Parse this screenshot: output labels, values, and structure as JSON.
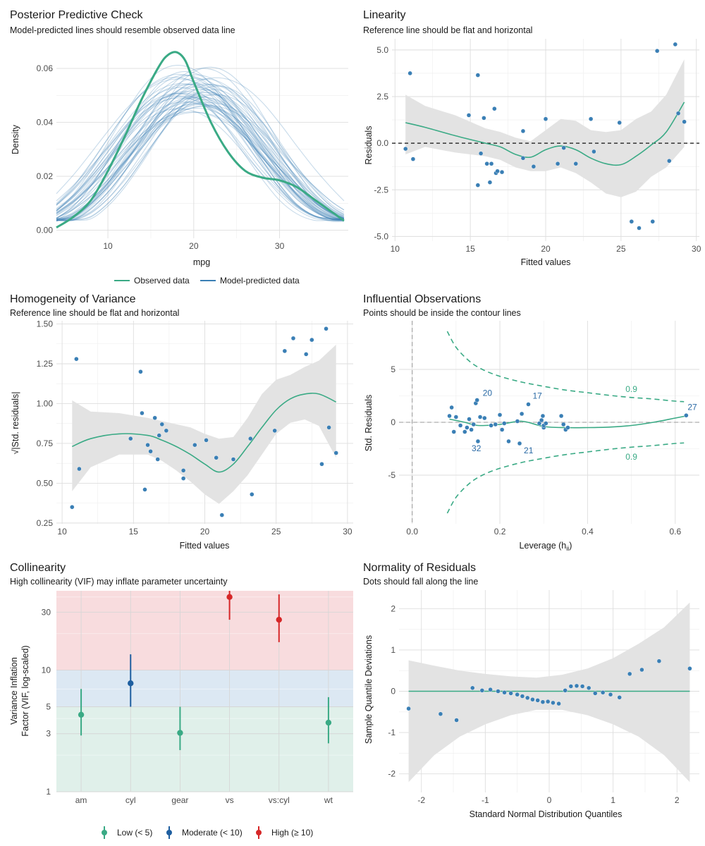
{
  "colors": {
    "green": "#3aaa85",
    "blue": "#3a7fb5",
    "red": "#d62728",
    "darkblue": "#1f5fa0",
    "ribbon": "#e3e3e3",
    "zone_low": "#e0f0ea",
    "zone_moderate": "#dce8f3",
    "zone_high": "#f8dcde"
  },
  "chart_data": [
    {
      "id": "ppc",
      "type": "line",
      "title": "Posterior Predictive Check",
      "subtitle": "Model-predicted lines should resemble observed data line",
      "xlabel": "mpg",
      "ylabel": "Density",
      "xlim": [
        4,
        38
      ],
      "ylim": [
        -0.003,
        0.071
      ],
      "xticks": [
        10,
        20,
        30
      ],
      "yticks": [
        0.0,
        0.02,
        0.04,
        0.06
      ],
      "ytick_labels": [
        "0.00",
        "0.02",
        "0.04",
        "0.06"
      ],
      "grid": true,
      "legend_position": "bottom",
      "legend": [
        "Observed data",
        "Model-predicted data"
      ],
      "series": [
        {
          "name": "Observed data",
          "x": [
            4,
            6,
            8,
            10,
            12,
            14,
            16,
            17,
            18,
            19,
            20,
            22,
            24,
            26,
            28,
            30,
            32,
            34,
            36,
            37.5
          ],
          "y": [
            0.001,
            0.005,
            0.011,
            0.022,
            0.035,
            0.049,
            0.061,
            0.065,
            0.066,
            0.063,
            0.055,
            0.04,
            0.029,
            0.022,
            0.0195,
            0.0185,
            0.016,
            0.0115,
            0.007,
            0.0035
          ]
        },
        {
          "name": "Model-predicted data",
          "draws": 50,
          "x": [
            4,
            6,
            8,
            10,
            12,
            14,
            16,
            18,
            20,
            22,
            24,
            26,
            28,
            30,
            32,
            34,
            36,
            37.5
          ],
          "y": [
            0.004,
            0.008,
            0.014,
            0.022,
            0.031,
            0.04,
            0.048,
            0.053,
            0.055,
            0.054,
            0.05,
            0.043,
            0.034,
            0.025,
            0.017,
            0.01,
            0.006,
            0.004
          ]
        }
      ]
    },
    {
      "id": "linearity",
      "type": "scatter",
      "title": "Linearity",
      "subtitle": "Reference line should be flat and horizontal",
      "xlabel": "Fitted values",
      "ylabel": "Residuals",
      "xlim": [
        9.8,
        30.2
      ],
      "ylim": [
        -5.25,
        5.6
      ],
      "xticks": [
        10,
        15,
        20,
        25,
        30
      ],
      "yticks": [
        -5.0,
        -2.5,
        0.0,
        2.5,
        5.0
      ],
      "ytick_labels": [
        "-5.0",
        "-2.5",
        "0.0",
        "2.5",
        "5.0"
      ],
      "grid": true,
      "reference_line": 0,
      "points": {
        "x": [
          10.7,
          11.0,
          11.2,
          14.9,
          15.5,
          15.5,
          15.7,
          15.9,
          16.1,
          16.3,
          16.4,
          16.6,
          16.7,
          16.8,
          17.1,
          18.5,
          18.5,
          19.2,
          20.0,
          20.8,
          21.2,
          22.0,
          23.0,
          23.2,
          24.9,
          25.7,
          26.2,
          27.1,
          27.4,
          28.2,
          28.6,
          28.8,
          29.2
        ],
        "y": [
          -0.3,
          3.75,
          -0.85,
          1.5,
          3.65,
          -2.25,
          -0.55,
          1.35,
          -1.1,
          -2.1,
          -1.1,
          1.85,
          -1.6,
          -1.5,
          -1.55,
          0.65,
          -0.8,
          -1.25,
          1.3,
          -1.1,
          -0.25,
          -1.1,
          1.3,
          -0.45,
          1.1,
          -4.2,
          -4.55,
          -4.2,
          4.95,
          -0.95,
          5.3,
          1.6,
          1.15
        ]
      },
      "smooth": {
        "x": [
          10.7,
          12,
          14,
          16,
          17,
          18,
          19,
          20,
          21,
          22,
          23,
          24,
          25,
          26,
          27,
          28,
          29.2
        ],
        "y": [
          1.1,
          0.85,
          0.4,
          0.0,
          -0.2,
          -0.6,
          -0.75,
          -0.35,
          -0.15,
          -0.35,
          -0.8,
          -1.1,
          -1.15,
          -0.7,
          -0.1,
          0.6,
          2.2
        ],
        "lower": [
          -0.6,
          -0.2,
          -0.5,
          -0.7,
          -0.9,
          -1.3,
          -1.5,
          -1.5,
          -1.3,
          -1.6,
          -2.1,
          -2.7,
          -2.9,
          -2.6,
          -1.8,
          -1.3,
          -0.2
        ],
        "upper": [
          2.6,
          2.0,
          1.5,
          0.8,
          0.6,
          0.3,
          0.1,
          0.7,
          1.3,
          1.2,
          0.7,
          0.6,
          0.7,
          1.3,
          1.7,
          2.6,
          4.5
        ]
      }
    },
    {
      "id": "homogeneity",
      "type": "scatter",
      "title": "Homogeneity of Variance",
      "subtitle": "Reference line should be flat and horizontal",
      "xlabel": "Fitted values",
      "ylabel": "√|Std. residuals|",
      "xlim": [
        9.6,
        30.4
      ],
      "ylim": [
        0.245,
        1.52
      ],
      "xticks": [
        10,
        15,
        20,
        25,
        30
      ],
      "yticks": [
        0.25,
        0.5,
        0.75,
        1.0,
        1.25,
        1.5
      ],
      "ytick_labels": [
        "0.25",
        "0.50",
        "0.75",
        "1.00",
        "1.25",
        "1.50"
      ],
      "grid": true,
      "points": {
        "x": [
          10.7,
          11.0,
          11.2,
          14.8,
          15.5,
          15.6,
          15.8,
          16.0,
          16.2,
          16.5,
          16.7,
          16.8,
          17.0,
          17.3,
          18.5,
          18.5,
          19.3,
          20.1,
          20.8,
          21.2,
          22.0,
          23.2,
          23.3,
          24.9,
          25.6,
          26.2,
          27.1,
          27.5,
          28.2,
          28.5,
          28.7,
          29.2
        ],
        "y": [
          0.35,
          1.28,
          0.59,
          0.78,
          1.2,
          0.94,
          0.46,
          0.74,
          0.7,
          0.91,
          0.65,
          0.8,
          0.87,
          0.83,
          0.58,
          0.53,
          0.74,
          0.77,
          0.66,
          0.3,
          0.65,
          0.78,
          0.43,
          0.83,
          1.33,
          1.41,
          1.31,
          1.4,
          0.62,
          1.47,
          0.85,
          0.69
        ]
      },
      "smooth": {
        "x": [
          10.7,
          12,
          14,
          16,
          17,
          18,
          19,
          20,
          21,
          22,
          23,
          24,
          25,
          26,
          27,
          28,
          29.2
        ],
        "y": [
          0.73,
          0.78,
          0.81,
          0.8,
          0.77,
          0.73,
          0.68,
          0.62,
          0.57,
          0.62,
          0.73,
          0.85,
          0.96,
          1.03,
          1.06,
          1.06,
          1.01
        ],
        "lower": [
          0.45,
          0.6,
          0.68,
          0.68,
          0.64,
          0.58,
          0.51,
          0.43,
          0.37,
          0.45,
          0.55,
          0.68,
          0.81,
          0.88,
          0.9,
          0.86,
          0.66
        ],
        "upper": [
          1.02,
          0.95,
          0.94,
          0.91,
          0.89,
          0.87,
          0.85,
          0.81,
          0.78,
          0.79,
          0.91,
          1.06,
          1.15,
          1.18,
          1.23,
          1.27,
          1.37
        ]
      }
    },
    {
      "id": "influential",
      "type": "scatter",
      "title": "Influential Observations",
      "subtitle": "Points should be inside the contour lines",
      "xlabel": "Leverage (h",
      "xlabel_sub": "ii",
      "xlabel_close": ")",
      "ylabel": "Std. Residuals",
      "xlim": [
        -0.03,
        0.655
      ],
      "ylim": [
        -9.6,
        9.6
      ],
      "xticks": [
        0.0,
        0.2,
        0.4,
        0.6
      ],
      "xtick_labels": [
        "0.0",
        "0.2",
        "0.4",
        "0.6"
      ],
      "yticks": [
        -5,
        0,
        5
      ],
      "ytick_labels": [
        "-5",
        "0",
        "5"
      ],
      "grid": true,
      "points": {
        "x": [
          0.085,
          0.09,
          0.095,
          0.1,
          0.11,
          0.12,
          0.125,
          0.13,
          0.135,
          0.14,
          0.145,
          0.148,
          0.15,
          0.155,
          0.165,
          0.18,
          0.19,
          0.2,
          0.205,
          0.21,
          0.22,
          0.24,
          0.245,
          0.25,
          0.265,
          0.29,
          0.295,
          0.298,
          0.3,
          0.3,
          0.305,
          0.34,
          0.345,
          0.35,
          0.355,
          0.625
        ],
        "y": [
          0.6,
          1.4,
          -0.9,
          0.5,
          -0.3,
          -0.9,
          -0.5,
          0.3,
          -0.7,
          -0.2,
          1.8,
          2.1,
          -1.8,
          0.5,
          0.4,
          -0.3,
          -0.2,
          0.7,
          -0.7,
          -0.1,
          -1.8,
          0.1,
          -2.0,
          0.8,
          1.7,
          -0.1,
          0.2,
          0.6,
          -0.5,
          -0.3,
          -0.1,
          0.6,
          -0.2,
          -0.7,
          -0.5,
          0.65
        ]
      },
      "labels": [
        {
          "text": "20",
          "x": 0.148,
          "y": 2.1
        },
        {
          "text": "17",
          "x": 0.265,
          "y": 1.7
        },
        {
          "text": "32",
          "x": 0.155,
          "y": -1.8
        },
        {
          "text": "21",
          "x": 0.245,
          "y": -2.0
        },
        {
          "text": "27",
          "x": 0.625,
          "y": 0.65
        }
      ],
      "smooth": {
        "x": [
          0.085,
          0.12,
          0.15,
          0.2,
          0.25,
          0.3,
          0.35,
          0.4,
          0.45,
          0.5,
          0.55,
          0.6,
          0.625
        ],
        "y": [
          0.3,
          0.0,
          -0.3,
          -0.2,
          0.1,
          -0.4,
          -0.5,
          -0.5,
          -0.45,
          -0.3,
          0.0,
          0.4,
          0.6
        ]
      },
      "contour_label": "0.9",
      "contours": {
        "x": [
          0.08,
          0.1,
          0.13,
          0.16,
          0.2,
          0.25,
          0.3,
          0.35,
          0.4,
          0.45,
          0.5,
          0.55,
          0.6,
          0.62
        ],
        "upper": [
          8.6,
          7.1,
          5.8,
          5.0,
          4.35,
          3.8,
          3.4,
          3.05,
          2.8,
          2.55,
          2.35,
          2.2,
          2.0,
          1.95
        ],
        "lower": [
          -8.6,
          -7.1,
          -5.8,
          -5.0,
          -4.35,
          -3.8,
          -3.4,
          -3.05,
          -2.8,
          -2.55,
          -2.35,
          -2.2,
          -2.0,
          -1.95
        ]
      }
    },
    {
      "id": "collinearity",
      "type": "scatter",
      "title": "Collinearity",
      "subtitle": "High collinearity (VIF) may inflate parameter uncertainty",
      "xlabel": "",
      "ylabel": "Variance Inflation",
      "ylabel2": "Factor (VIF, log-scaled)",
      "yscale": "log",
      "ylim": [
        1,
        45
      ],
      "yticks": [
        1,
        3,
        5,
        10,
        30
      ],
      "ytick_labels": [
        "1",
        "3",
        "5",
        "10",
        "30"
      ],
      "grid": true,
      "categories": [
        "am",
        "cyl",
        "gear",
        "vs",
        "vs:cyl",
        "wt"
      ],
      "values": [
        4.3,
        7.8,
        3.05,
        40,
        26,
        3.7
      ],
      "ci_low": [
        2.9,
        5.0,
        2.2,
        26,
        17,
        2.5
      ],
      "ci_high": [
        7.0,
        13.5,
        5.0,
        48,
        42,
        6.0
      ],
      "level": [
        "low",
        "moderate",
        "low",
        "high",
        "high",
        "low"
      ],
      "legend_position": "bottom",
      "legend": [
        "Low (< 5)",
        "Moderate (< 10)",
        "High (≥ 10)"
      ]
    },
    {
      "id": "normality",
      "type": "scatter",
      "title": "Normality of Residuals",
      "subtitle": "Dots should fall along the line",
      "xlabel": "Standard Normal Distribution Quantiles",
      "ylabel": "Sample Quantile Deviations",
      "xlim": [
        -2.35,
        2.35
      ],
      "ylim": [
        -2.45,
        2.45
      ],
      "xticks": [
        -2,
        -1,
        0,
        1,
        2
      ],
      "yticks": [
        -2,
        -1,
        0,
        1,
        2
      ],
      "grid": true,
      "reference_line": 0,
      "points": {
        "x": [
          -2.2,
          -1.7,
          -1.45,
          -1.2,
          -1.05,
          -0.92,
          -0.8,
          -0.7,
          -0.6,
          -0.5,
          -0.42,
          -0.34,
          -0.26,
          -0.18,
          -0.1,
          -0.02,
          0.06,
          0.15,
          0.25,
          0.34,
          0.43,
          0.52,
          0.62,
          0.72,
          0.84,
          0.96,
          1.1,
          1.26,
          1.45,
          1.72,
          2.2
        ],
        "y": [
          -0.42,
          -0.55,
          -0.7,
          0.08,
          0.02,
          0.04,
          0.0,
          -0.03,
          -0.05,
          -0.08,
          -0.12,
          -0.16,
          -0.2,
          -0.22,
          -0.26,
          -0.25,
          -0.28,
          -0.3,
          0.02,
          0.12,
          0.13,
          0.12,
          0.08,
          -0.05,
          -0.03,
          -0.08,
          -0.15,
          0.42,
          0.52,
          0.73,
          0.55
        ]
      },
      "band": {
        "x": [
          -2.2,
          -1.8,
          -1.4,
          -1.0,
          -0.6,
          -0.2,
          0.2,
          0.6,
          1.0,
          1.4,
          1.8,
          2.2
        ],
        "lower": [
          -2.2,
          -1.55,
          -1.1,
          -0.8,
          -0.58,
          -0.45,
          -0.45,
          -0.58,
          -0.8,
          -1.1,
          -1.55,
          -2.2
        ],
        "upper": [
          0.75,
          0.62,
          0.5,
          0.42,
          0.36,
          0.33,
          0.4,
          0.55,
          0.8,
          1.15,
          1.55,
          2.15
        ]
      }
    }
  ]
}
